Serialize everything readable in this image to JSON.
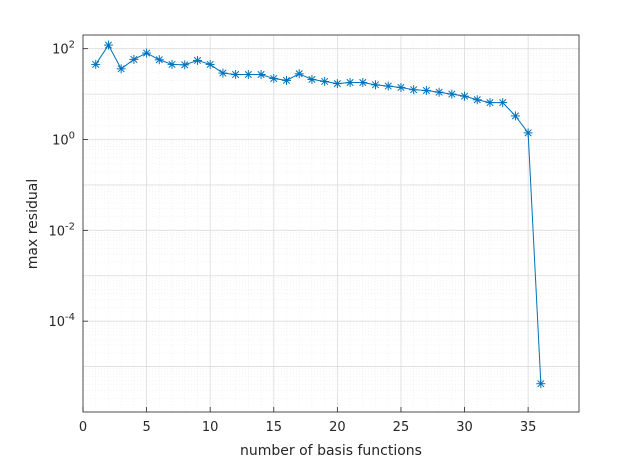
{
  "chart_data": {
    "type": "line",
    "title": "",
    "xlabel": "number of basis functions",
    "ylabel": "max residual",
    "xlim": [
      0,
      39
    ],
    "ylim": [
      1e-06,
      200
    ],
    "yscale": "log",
    "grid": true,
    "minor_grid": true,
    "legend": "none",
    "x_ticks": [
      0,
      5,
      10,
      15,
      20,
      25,
      30,
      35
    ],
    "x_tick_labels": [
      "0",
      "5",
      "10",
      "15",
      "20",
      "25",
      "30",
      "35"
    ],
    "y_ticks": [
      {
        "value": 0.0001,
        "base": "10",
        "exp": "-4"
      },
      {
        "value": 0.01,
        "base": "10",
        "exp": "-2"
      },
      {
        "value": 1,
        "base": "10",
        "exp": "0"
      },
      {
        "value": 100,
        "base": "10",
        "exp": "2"
      }
    ],
    "series": [
      {
        "color": "#0072BD",
        "marker": "asterisk",
        "x": [
          1,
          2,
          3,
          4,
          5,
          6,
          7,
          8,
          9,
          10,
          11,
          12,
          13,
          14,
          15,
          16,
          17,
          18,
          19,
          20,
          21,
          22,
          23,
          24,
          25,
          26,
          27,
          28,
          29,
          30,
          31,
          32,
          33,
          34,
          35,
          36
        ],
        "y": [
          45,
          120,
          36,
          58,
          80,
          57,
          45,
          44,
          55,
          45,
          29,
          27,
          27,
          27,
          22,
          20,
          28,
          21,
          19,
          17,
          18,
          18,
          16,
          15,
          14,
          12.5,
          12,
          11,
          10,
          9,
          7.5,
          6.5,
          6.5,
          3.3,
          1.4,
          4.2e-06
        ]
      }
    ]
  }
}
